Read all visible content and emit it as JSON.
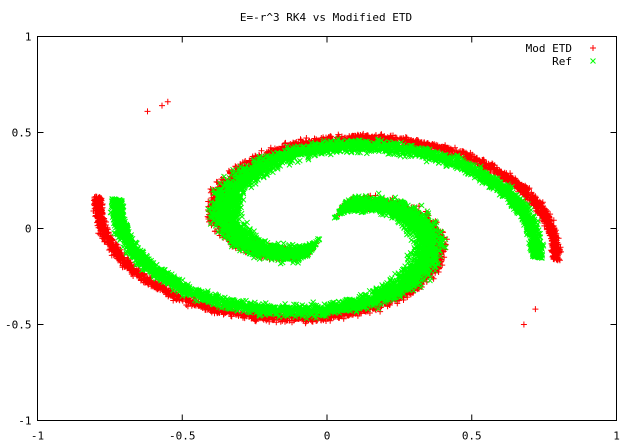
{
  "chart_data": {
    "type": "scatter",
    "title": "E=-r^3 RK4 vs Modified ETD",
    "xlabel": "",
    "ylabel": "",
    "xlim": [
      -1,
      1
    ],
    "ylim": [
      -1,
      1
    ],
    "x_ticks": [
      "-1",
      "-0.5",
      "0",
      "0.5",
      "1"
    ],
    "y_ticks": [
      "1",
      "0.5",
      "0",
      "-0.5",
      "-1"
    ],
    "grid": false,
    "legend_position": "top-right",
    "series": [
      {
        "name": "Mod ETD",
        "marker": "+",
        "color": "#ff0000",
        "shape": "two-arm spiral",
        "outer_radius": 0.83,
        "outer_band_width": 0.05,
        "stray_points": [
          [
            -0.55,
            0.66
          ],
          [
            -0.57,
            0.64
          ],
          [
            -0.62,
            0.61
          ],
          [
            0.68,
            -0.5
          ],
          [
            0.72,
            -0.42
          ]
        ]
      },
      {
        "name": "Ref",
        "marker": "x",
        "color": "#00ff00",
        "shape": "two-arm spiral",
        "outer_radius": 0.76,
        "outer_band_width": 0.07,
        "stray_points": []
      }
    ]
  }
}
